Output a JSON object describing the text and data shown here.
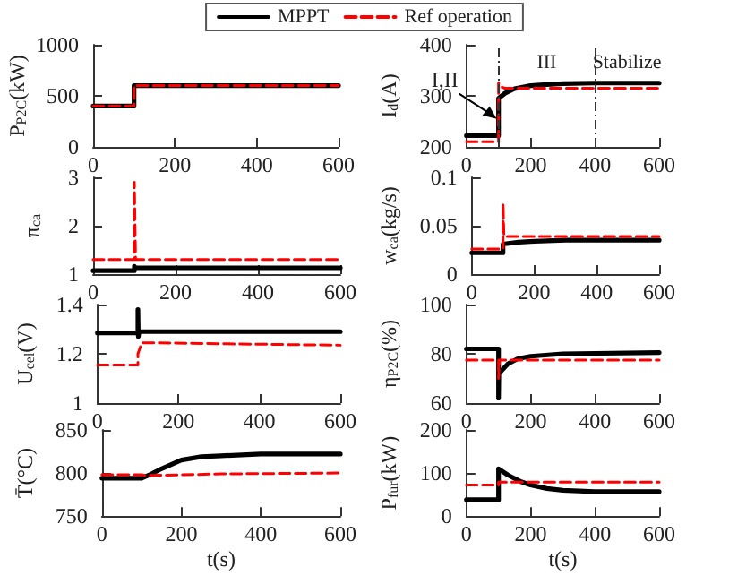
{
  "chart_data": [
    {
      "type": "line",
      "ylabel": "P$_{P2C}$(kW)",
      "xlim": [
        0,
        600
      ],
      "xticks": [
        0,
        200,
        400,
        600
      ],
      "ylim": [
        0,
        1000
      ],
      "yticks": [
        0,
        500,
        1000
      ],
      "grid": false,
      "legend": "top",
      "marker": "none",
      "series": [
        {
          "name": "MPPT",
          "color": "#000000",
          "line_style": "solid",
          "x": [
            0,
            100,
            100,
            600
          ],
          "values": [
            400,
            400,
            600,
            600
          ]
        },
        {
          "name": "Ref operation",
          "color": "#ff0000",
          "line_style": "dashed",
          "x": [
            0,
            100,
            100,
            600
          ],
          "values": [
            400,
            400,
            600,
            600
          ]
        }
      ]
    },
    {
      "type": "line",
      "ylabel": "I$_{d}$(A)",
      "xlim": [
        0,
        600
      ],
      "xticks": [
        0,
        200,
        400,
        600
      ],
      "ylim": [
        200,
        400
      ],
      "yticks": [
        200,
        300,
        400
      ],
      "grid": false,
      "marker": "none",
      "ref_lines": [
        {
          "axis": "x",
          "value": 100,
          "color": "#333333",
          "line_style": "dashed"
        },
        {
          "axis": "x",
          "value": 400,
          "color": "#333333",
          "line_style": "dashed"
        }
      ],
      "annotations": [
        {
          "text": "I,II",
          "x": 100,
          "y": 255
        },
        "III",
        "Stabilize"
      ],
      "series": [
        {
          "color": "#000000",
          "line_style": "solid",
          "x": [
            0,
            100,
            100,
            120,
            150,
            200,
            250,
            300,
            400,
            600
          ],
          "values": [
            222,
            222,
            295,
            305,
            314,
            320,
            322,
            324,
            325,
            325
          ]
        },
        {
          "color": "#ff0000",
          "line_style": "dashed",
          "x": [
            0,
            100,
            100,
            105,
            120,
            600
          ],
          "values": [
            210,
            210,
            325,
            318,
            315,
            315
          ]
        }
      ]
    },
    {
      "type": "line",
      "ylabel": "π$_{ca}$",
      "xlim": [
        0,
        600
      ],
      "xticks": [
        0,
        200,
        400,
        600
      ],
      "ylim": [
        1,
        3
      ],
      "yticks": [
        1,
        2,
        3
      ],
      "grid": false,
      "marker": "none",
      "series": [
        {
          "color": "#000000",
          "line_style": "solid",
          "x": [
            0,
            100,
            100,
            102,
            600
          ],
          "values": [
            1.07,
            1.07,
            1.16,
            1.13,
            1.13
          ]
        },
        {
          "color": "#ff0000",
          "line_style": "dashed",
          "x": [
            0,
            100,
            100,
            103,
            600
          ],
          "values": [
            1.3,
            1.3,
            2.9,
            1.3,
            1.3
          ]
        }
      ]
    },
    {
      "type": "line",
      "ylabel": "w$_{ca}$(kg/s)",
      "xlim": [
        0,
        600
      ],
      "xticks": [
        0,
        200,
        400,
        600
      ],
      "ylim": [
        0,
        0.1
      ],
      "yticks": [
        0,
        0.05,
        0.1
      ],
      "grid": false,
      "marker": "none",
      "series": [
        {
          "color": "#000000",
          "line_style": "solid",
          "x": [
            0,
            100,
            100,
            150,
            200,
            300,
            600
          ],
          "values": [
            0.022,
            0.022,
            0.031,
            0.033,
            0.034,
            0.035,
            0.035
          ]
        },
        {
          "color": "#ff0000",
          "line_style": "dashed",
          "x": [
            0,
            100,
            100,
            103,
            600
          ],
          "values": [
            0.026,
            0.026,
            0.073,
            0.039,
            0.039
          ]
        }
      ]
    },
    {
      "type": "line",
      "ylabel": "U$_{cel}$(V)",
      "xlim": [
        0,
        600
      ],
      "xticks": [
        0,
        200,
        400,
        600
      ],
      "ylim": [
        1,
        1.4
      ],
      "yticks": [
        1,
        1.2,
        1.4
      ],
      "grid": false,
      "marker": "none",
      "series": [
        {
          "color": "#000000",
          "line_style": "solid",
          "x": [
            0,
            100,
            100,
            101,
            103,
            600
          ],
          "values": [
            1.285,
            1.285,
            1.38,
            1.27,
            1.29,
            1.29
          ]
        },
        {
          "color": "#ff0000",
          "line_style": "dashed",
          "x": [
            0,
            100,
            100,
            110,
            600
          ],
          "values": [
            1.155,
            1.155,
            1.2,
            1.245,
            1.235
          ]
        }
      ]
    },
    {
      "type": "line",
      "ylabel": "η$_{P2C}$(%)",
      "xlim": [
        0,
        600
      ],
      "xticks": [
        0,
        200,
        400,
        600
      ],
      "ylim": [
        60,
        100
      ],
      "yticks": [
        60,
        80,
        100
      ],
      "grid": false,
      "marker": "none",
      "series": [
        {
          "color": "#000000",
          "line_style": "solid",
          "x": [
            0,
            100,
            100,
            101,
            130,
            160,
            200,
            300,
            600
          ],
          "values": [
            82,
            82,
            62,
            72,
            76,
            78,
            79,
            80,
            80.5
          ]
        },
        {
          "color": "#ff0000",
          "line_style": "dashed",
          "x": [
            0,
            100,
            100,
            103,
            600
          ],
          "values": [
            77.5,
            77.5,
            70,
            77.5,
            77.5
          ]
        }
      ]
    },
    {
      "type": "line",
      "ylabel": "T̄(°C)",
      "xlabel": "t(s)",
      "xlim": [
        0,
        600
      ],
      "xticks": [
        0,
        200,
        400,
        600
      ],
      "ylim": [
        750,
        850
      ],
      "yticks": [
        750,
        800,
        850
      ],
      "grid": false,
      "marker": "none",
      "series": [
        {
          "color": "#000000",
          "line_style": "solid",
          "x": [
            0,
            100,
            125,
            150,
            200,
            250,
            300,
            400,
            600
          ],
          "values": [
            794,
            794,
            799,
            805,
            815,
            819,
            820,
            822,
            822
          ]
        },
        {
          "color": "#ff0000",
          "line_style": "dashed",
          "x": [
            0,
            100,
            110,
            300,
            600
          ],
          "values": [
            798,
            798,
            797,
            799,
            800
          ]
        }
      ]
    },
    {
      "type": "line",
      "ylabel": "P$_{fur}$(kW)",
      "xlabel": "t(s)",
      "xlim": [
        0,
        600
      ],
      "xticks": [
        0,
        200,
        400,
        600
      ],
      "ylim": [
        0,
        200
      ],
      "yticks": [
        0,
        100,
        200
      ],
      "grid": false,
      "marker": "none",
      "series": [
        {
          "color": "#000000",
          "line_style": "solid",
          "x": [
            0,
            100,
            100,
            130,
            170,
            200,
            250,
            300,
            400,
            600
          ],
          "values": [
            38,
            38,
            110,
            95,
            80,
            72,
            64,
            60,
            57,
            57
          ]
        },
        {
          "color": "#ff0000",
          "line_style": "dashed",
          "x": [
            0,
            100,
            100,
            600
          ],
          "values": [
            72,
            72,
            79,
            79
          ]
        }
      ]
    }
  ]
}
